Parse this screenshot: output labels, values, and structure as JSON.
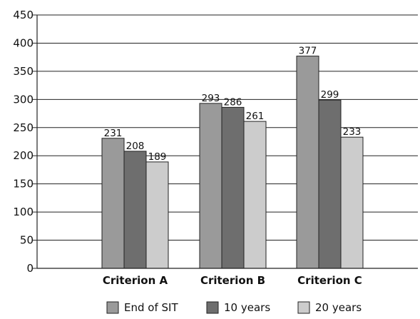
{
  "chart_data": {
    "type": "bar",
    "title": "",
    "xlabel": "",
    "ylabel": "",
    "ylim": [
      0,
      450
    ],
    "yticks": [
      0,
      50,
      100,
      150,
      200,
      250,
      300,
      350,
      400,
      450
    ],
    "grid": "horizontal",
    "legend_position": "bottom-center",
    "categories": [
      "Criterion A",
      "Criterion B",
      "Criterion C"
    ],
    "series": [
      {
        "name": "End of SIT",
        "values": [
          231,
          293,
          377
        ],
        "color": "#9a9a9a"
      },
      {
        "name": "10 years",
        "values": [
          208,
          286,
          299
        ],
        "color": "#6e6e6e"
      },
      {
        "name": "20 years",
        "values": [
          189,
          261,
          233
        ],
        "color": "#cccccc"
      }
    ]
  }
}
